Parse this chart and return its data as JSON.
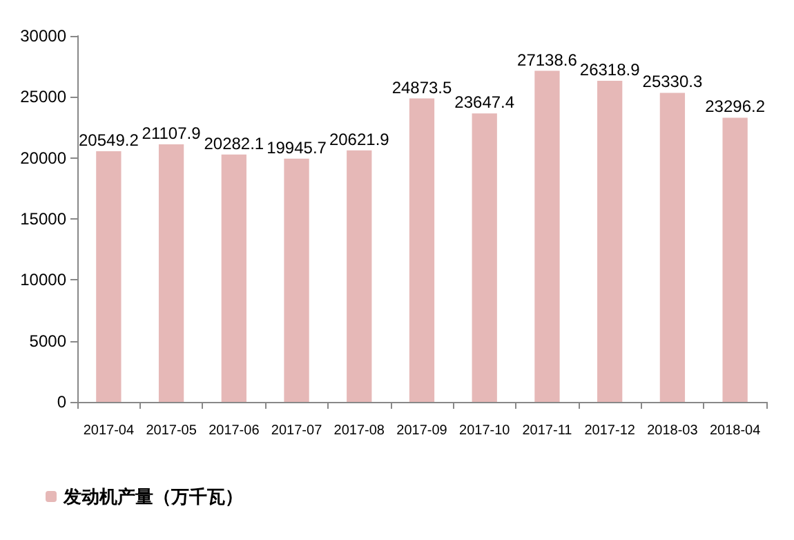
{
  "chart_data": {
    "type": "bar",
    "categories": [
      "2017-04",
      "2017-05",
      "2017-06",
      "2017-07",
      "2017-08",
      "2017-09",
      "2017-10",
      "2017-11",
      "2017-12",
      "2018-03",
      "2018-04"
    ],
    "series": [
      {
        "name": "发动机产量（万千瓦）",
        "color": "#e6b8b7",
        "values": [
          20549.2,
          21107.9,
          20282.1,
          19945.7,
          20621.9,
          24873.5,
          23647.4,
          27138.6,
          26318.9,
          25330.3,
          23296.2
        ]
      }
    ],
    "ylim": [
      0,
      30000
    ],
    "yticks": [
      0,
      5000,
      10000,
      15000,
      20000,
      25000,
      30000
    ],
    "grid": false,
    "legend": "bottom left",
    "data_labels": true
  }
}
